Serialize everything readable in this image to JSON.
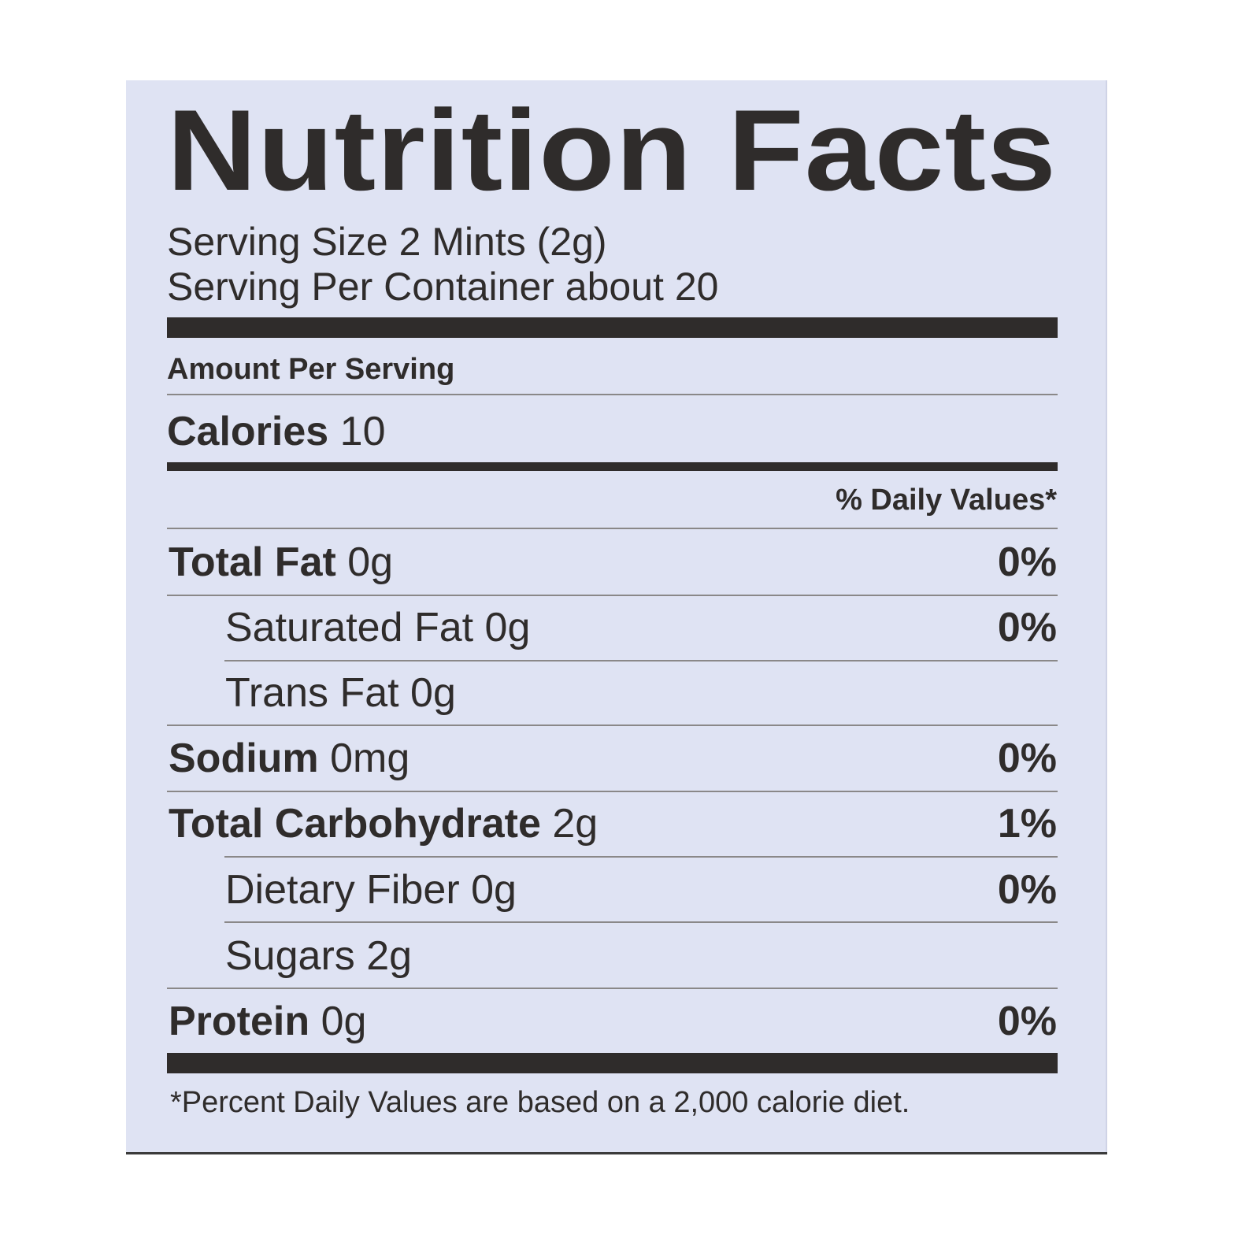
{
  "label": {
    "title": "Nutrition Facts",
    "serving_size": "Serving Size 2 Mints  (2g)",
    "servings_per_container": "Serving Per Container about 20",
    "amount_per_serving": "Amount Per Serving",
    "calories": {
      "label": "Calories",
      "value": "10"
    },
    "daily_values_header": "% Daily Values*",
    "nutrients": [
      {
        "name": "Total Fat",
        "amount": "0g",
        "dv": "0%"
      },
      {
        "name": "Saturated Fat",
        "amount": "0g",
        "dv": "0%"
      },
      {
        "name": "Trans Fat",
        "amount": "0g",
        "dv": ""
      },
      {
        "name": "Sodium",
        "amount": "0mg",
        "dv": "0%"
      },
      {
        "name": "Total Carbohydrate",
        "amount": "2g",
        "dv": "1%"
      },
      {
        "name": "Dietary Fiber",
        "amount": "0g",
        "dv": "0%"
      },
      {
        "name": "Sugars",
        "amount": "2g",
        "dv": ""
      },
      {
        "name": "Protein",
        "amount": "0g",
        "dv": "0%"
      }
    ],
    "footnote": "*Percent Daily Values are based on a 2,000 calorie diet."
  },
  "colors": {
    "panel": "#dfe3f3",
    "ink": "#2f2c2b"
  }
}
